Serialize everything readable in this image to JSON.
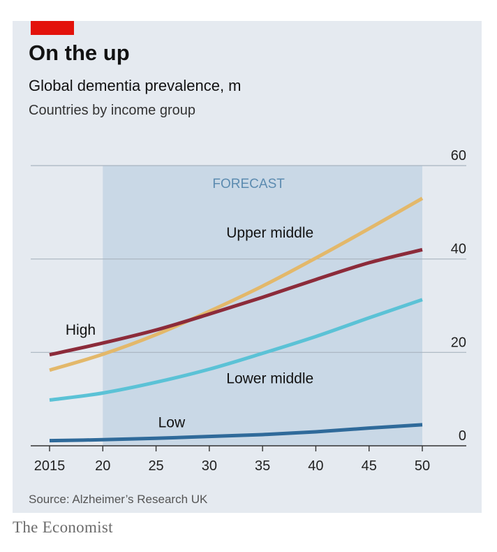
{
  "header": {
    "title": "On the up",
    "subtitle": "Global dementia prevalence, m",
    "subtitle2": "Countries by income group"
  },
  "footer": {
    "source": "Source: Alzheimer’s Research UK",
    "brand": "The Economist"
  },
  "colors": {
    "background": "#e5eaf0",
    "forecast_band": "#c9d8e6",
    "accent_red": "#e3120b",
    "high": "#8c2b3a",
    "upper_middle": "#e3b86a",
    "lower_middle": "#5bc2d6",
    "low": "#2f6a9a"
  },
  "chart_data": {
    "type": "line",
    "title": "On the up",
    "subtitle": "Global dementia prevalence, m",
    "x": [
      2015,
      2020,
      2025,
      2030,
      2035,
      2040,
      2045,
      2050
    ],
    "x_tick_labels": [
      "2015",
      "20",
      "25",
      "30",
      "35",
      "40",
      "45",
      "50"
    ],
    "y_tick_labels": [
      "0",
      "20",
      "40",
      "60"
    ],
    "y_ticks": [
      0,
      20,
      40,
      60
    ],
    "ylim": [
      0,
      60
    ],
    "xlim": [
      2015,
      2050
    ],
    "y_axis_side": "right",
    "grid": true,
    "forecast": {
      "label": "FORECAST",
      "from": 2020,
      "to": 2050
    },
    "series": [
      {
        "name": "High",
        "key": "high",
        "values": [
          19.5,
          22,
          24.8,
          28.2,
          31.8,
          35.6,
          39.2,
          42
        ]
      },
      {
        "name": "Upper middle",
        "key": "upper_middle",
        "values": [
          16.2,
          19.6,
          23.8,
          28.8,
          34.2,
          40.2,
          46.5,
          53
        ]
      },
      {
        "name": "Lower middle",
        "key": "lower_middle",
        "values": [
          9.8,
          11.3,
          13.6,
          16.4,
          19.8,
          23.4,
          27.4,
          31.3
        ]
      },
      {
        "name": "Low",
        "key": "low",
        "values": [
          1.1,
          1.3,
          1.6,
          2.0,
          2.4,
          3.0,
          3.8,
          4.5
        ]
      }
    ]
  }
}
